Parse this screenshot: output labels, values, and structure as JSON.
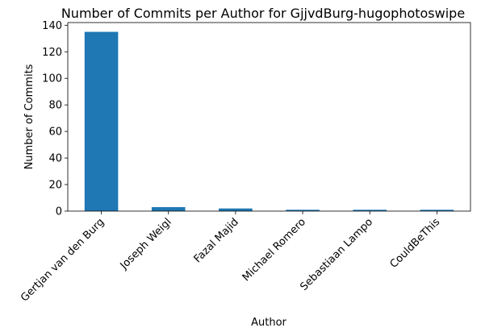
{
  "chart_data": {
    "type": "bar",
    "title": "Number of Commits per Author for GjjvdBurg-hugophotoswipe",
    "xlabel": "Author",
    "ylabel": "Number of Commits",
    "categories": [
      "Gertjan van den Burg",
      "Joseph Weigl",
      "Fazal Majid",
      "Michael Romero",
      "Sebastiaan Lampo",
      "CouldBeThis"
    ],
    "values": [
      135,
      3,
      2,
      1,
      1,
      1
    ],
    "ylim": [
      0,
      142
    ],
    "yticks": [
      0,
      20,
      40,
      60,
      80,
      100,
      120,
      140
    ],
    "bar_color": "#1f77b4",
    "grid": false,
    "legend": "none"
  }
}
